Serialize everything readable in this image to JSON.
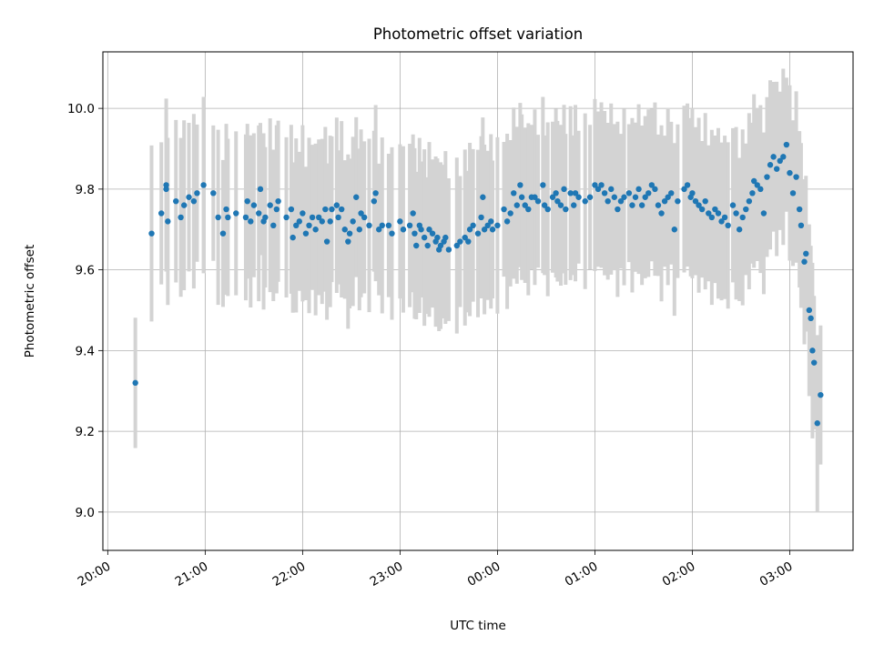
{
  "chart_data": {
    "type": "scatter",
    "title": "Photometric offset variation",
    "xlabel": "UTC time",
    "ylabel": "Photometric offset",
    "x_axis_type": "time",
    "x_ticks": [
      "20:00",
      "21:00",
      "22:00",
      "23:00",
      "00:00",
      "01:00",
      "02:00",
      "03:00"
    ],
    "y_ticks": [
      "9.0",
      "9.2",
      "9.4",
      "9.6",
      "9.8",
      "10.0"
    ],
    "xlim": [
      "19:57",
      "03:39"
    ],
    "ylim": [
      8.905,
      10.14
    ],
    "grid": true,
    "colors": {
      "points": "#1f77b4",
      "errorbars": "#d3d3d3"
    },
    "series": [
      {
        "errorbar_halfwidth_approx": 0.19,
        "points": [
          [
            "20:17",
            9.32
          ],
          [
            "20:27",
            9.69
          ],
          [
            "20:33",
            9.74
          ],
          [
            "20:36",
            9.81
          ],
          [
            "20:36",
            9.8
          ],
          [
            "20:37",
            9.72
          ],
          [
            "20:42",
            9.77
          ],
          [
            "20:45",
            9.73
          ],
          [
            "20:47",
            9.76
          ],
          [
            "20:50",
            9.78
          ],
          [
            "20:53",
            9.77
          ],
          [
            "20:55",
            9.79
          ],
          [
            "20:59",
            9.81
          ],
          [
            "21:05",
            9.79
          ],
          [
            "21:08",
            9.73
          ],
          [
            "21:11",
            9.69
          ],
          [
            "21:13",
            9.75
          ],
          [
            "21:14",
            9.73
          ],
          [
            "21:19",
            9.74
          ],
          [
            "21:25",
            9.73
          ],
          [
            "21:26",
            9.77
          ],
          [
            "21:28",
            9.72
          ],
          [
            "21:30",
            9.76
          ],
          [
            "21:33",
            9.74
          ],
          [
            "21:34",
            9.8
          ],
          [
            "21:36",
            9.72
          ],
          [
            "21:37",
            9.73
          ],
          [
            "21:40",
            9.76
          ],
          [
            "21:42",
            9.71
          ],
          [
            "21:44",
            9.75
          ],
          [
            "21:45",
            9.77
          ],
          [
            "21:50",
            9.73
          ],
          [
            "21:53",
            9.75
          ],
          [
            "21:54",
            9.68
          ],
          [
            "21:56",
            9.71
          ],
          [
            "21:58",
            9.72
          ],
          [
            "22:00",
            9.74
          ],
          [
            "22:02",
            9.69
          ],
          [
            "22:04",
            9.71
          ],
          [
            "22:06",
            9.73
          ],
          [
            "22:08",
            9.7
          ],
          [
            "22:10",
            9.73
          ],
          [
            "22:12",
            9.72
          ],
          [
            "22:14",
            9.75
          ],
          [
            "22:15",
            9.67
          ],
          [
            "22:17",
            9.72
          ],
          [
            "22:18",
            9.75
          ],
          [
            "22:21",
            9.76
          ],
          [
            "22:22",
            9.73
          ],
          [
            "22:24",
            9.75
          ],
          [
            "22:26",
            9.7
          ],
          [
            "22:28",
            9.67
          ],
          [
            "22:29",
            9.69
          ],
          [
            "22:31",
            9.72
          ],
          [
            "22:33",
            9.78
          ],
          [
            "22:35",
            9.7
          ],
          [
            "22:36",
            9.74
          ],
          [
            "22:38",
            9.73
          ],
          [
            "22:41",
            9.71
          ],
          [
            "22:44",
            9.77
          ],
          [
            "22:45",
            9.79
          ],
          [
            "22:47",
            9.7
          ],
          [
            "22:49",
            9.71
          ],
          [
            "22:53",
            9.71
          ],
          [
            "22:55",
            9.69
          ],
          [
            "23:00",
            9.72
          ],
          [
            "23:02",
            9.7
          ],
          [
            "23:06",
            9.71
          ],
          [
            "23:08",
            9.74
          ],
          [
            "23:09",
            9.69
          ],
          [
            "23:10",
            9.66
          ],
          [
            "23:12",
            9.71
          ],
          [
            "23:13",
            9.7
          ],
          [
            "23:15",
            9.68
          ],
          [
            "23:17",
            9.66
          ],
          [
            "23:18",
            9.7
          ],
          [
            "23:20",
            9.69
          ],
          [
            "23:22",
            9.67
          ],
          [
            "23:23",
            9.68
          ],
          [
            "23:24",
            9.65
          ],
          [
            "23:25",
            9.66
          ],
          [
            "23:27",
            9.67
          ],
          [
            "23:28",
            9.68
          ],
          [
            "23:30",
            9.65
          ],
          [
            "23:35",
            9.66
          ],
          [
            "23:37",
            9.67
          ],
          [
            "23:40",
            9.68
          ],
          [
            "23:42",
            9.67
          ],
          [
            "23:43",
            9.7
          ],
          [
            "23:45",
            9.71
          ],
          [
            "23:48",
            9.69
          ],
          [
            "23:50",
            9.73
          ],
          [
            "23:51",
            9.78
          ],
          [
            "23:52",
            9.7
          ],
          [
            "23:54",
            9.71
          ],
          [
            "23:56",
            9.72
          ],
          [
            "23:57",
            9.7
          ],
          [
            "00:00",
            9.71
          ],
          [
            "00:04",
            9.75
          ],
          [
            "00:06",
            9.72
          ],
          [
            "00:08",
            9.74
          ],
          [
            "00:10",
            9.79
          ],
          [
            "00:12",
            9.76
          ],
          [
            "00:14",
            9.81
          ],
          [
            "00:15",
            9.78
          ],
          [
            "00:17",
            9.76
          ],
          [
            "00:19",
            9.75
          ],
          [
            "00:21",
            9.78
          ],
          [
            "00:23",
            9.78
          ],
          [
            "00:25",
            9.77
          ],
          [
            "00:28",
            9.81
          ],
          [
            "00:29",
            9.76
          ],
          [
            "00:31",
            9.75
          ],
          [
            "00:34",
            9.78
          ],
          [
            "00:36",
            9.79
          ],
          [
            "00:37",
            9.77
          ],
          [
            "00:39",
            9.76
          ],
          [
            "00:41",
            9.8
          ],
          [
            "00:42",
            9.75
          ],
          [
            "00:45",
            9.79
          ],
          [
            "00:47",
            9.76
          ],
          [
            "00:48",
            9.79
          ],
          [
            "00:50",
            9.78
          ],
          [
            "00:54",
            9.77
          ],
          [
            "00:57",
            9.78
          ],
          [
            "01:00",
            9.81
          ],
          [
            "01:02",
            9.8
          ],
          [
            "01:04",
            9.81
          ],
          [
            "01:06",
            9.79
          ],
          [
            "01:08",
            9.77
          ],
          [
            "01:10",
            9.8
          ],
          [
            "01:12",
            9.78
          ],
          [
            "01:14",
            9.75
          ],
          [
            "01:16",
            9.77
          ],
          [
            "01:18",
            9.78
          ],
          [
            "01:21",
            9.79
          ],
          [
            "01:23",
            9.76
          ],
          [
            "01:25",
            9.78
          ],
          [
            "01:27",
            9.8
          ],
          [
            "01:29",
            9.76
          ],
          [
            "01:31",
            9.78
          ],
          [
            "01:33",
            9.79
          ],
          [
            "01:35",
            9.81
          ],
          [
            "01:37",
            9.8
          ],
          [
            "01:39",
            9.76
          ],
          [
            "01:41",
            9.74
          ],
          [
            "01:43",
            9.77
          ],
          [
            "01:45",
            9.78
          ],
          [
            "01:47",
            9.79
          ],
          [
            "01:49",
            9.7
          ],
          [
            "01:51",
            9.77
          ],
          [
            "01:55",
            9.8
          ],
          [
            "01:57",
            9.81
          ],
          [
            "01:59",
            9.78
          ],
          [
            "02:00",
            9.79
          ],
          [
            "02:02",
            9.77
          ],
          [
            "02:04",
            9.76
          ],
          [
            "02:06",
            9.75
          ],
          [
            "02:08",
            9.77
          ],
          [
            "02:10",
            9.74
          ],
          [
            "02:12",
            9.73
          ],
          [
            "02:14",
            9.75
          ],
          [
            "02:16",
            9.74
          ],
          [
            "02:18",
            9.72
          ],
          [
            "02:20",
            9.73
          ],
          [
            "02:22",
            9.71
          ],
          [
            "02:25",
            9.76
          ],
          [
            "02:27",
            9.74
          ],
          [
            "02:29",
            9.7
          ],
          [
            "02:31",
            9.73
          ],
          [
            "02:33",
            9.75
          ],
          [
            "02:35",
            9.77
          ],
          [
            "02:37",
            9.79
          ],
          [
            "02:38",
            9.82
          ],
          [
            "02:40",
            9.81
          ],
          [
            "02:42",
            9.8
          ],
          [
            "02:44",
            9.74
          ],
          [
            "02:46",
            9.83
          ],
          [
            "02:48",
            9.86
          ],
          [
            "02:50",
            9.88
          ],
          [
            "02:52",
            9.85
          ],
          [
            "02:54",
            9.87
          ],
          [
            "02:56",
            9.88
          ],
          [
            "02:58",
            9.91
          ],
          [
            "03:00",
            9.84
          ],
          [
            "03:02",
            9.79
          ],
          [
            "03:04",
            9.83
          ],
          [
            "03:06",
            9.75
          ],
          [
            "03:07",
            9.71
          ],
          [
            "03:09",
            9.62
          ],
          [
            "03:10",
            9.64
          ],
          [
            "03:12",
            9.5
          ],
          [
            "03:13",
            9.48
          ],
          [
            "03:14",
            9.4
          ],
          [
            "03:15",
            9.37
          ],
          [
            "03:17",
            9.22
          ],
          [
            "03:19",
            9.29
          ]
        ]
      }
    ]
  }
}
